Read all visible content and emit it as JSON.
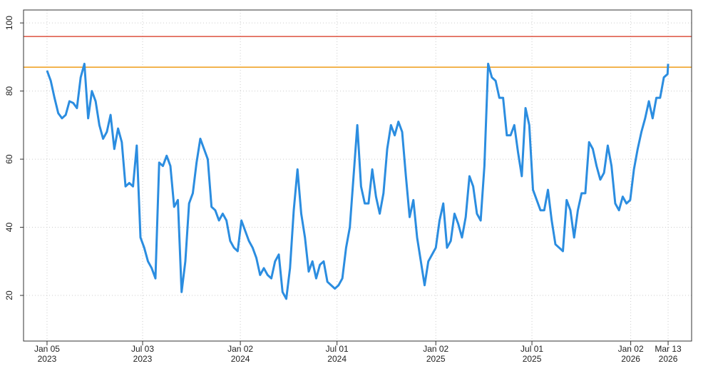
{
  "chart_data": {
    "type": "line",
    "x": [
      "2023-01-05",
      "2023-01-12",
      "2023-01-19",
      "2023-01-26",
      "2023-02-02",
      "2023-02-09",
      "2023-02-16",
      "2023-02-23",
      "2023-03-02",
      "2023-03-09",
      "2023-03-16",
      "2023-03-23",
      "2023-03-30",
      "2023-04-06",
      "2023-04-13",
      "2023-04-20",
      "2023-04-27",
      "2023-05-04",
      "2023-05-11",
      "2023-05-18",
      "2023-05-25",
      "2023-06-01",
      "2023-06-08",
      "2023-06-15",
      "2023-06-22",
      "2023-06-29",
      "2023-07-06",
      "2023-07-13",
      "2023-07-20",
      "2023-07-27",
      "2023-08-03",
      "2023-08-10",
      "2023-08-17",
      "2023-08-24",
      "2023-08-31",
      "2023-09-07",
      "2023-09-14",
      "2023-09-21",
      "2023-09-28",
      "2023-10-05",
      "2023-10-12",
      "2023-10-19",
      "2023-10-26",
      "2023-11-02",
      "2023-11-09",
      "2023-11-16",
      "2023-11-23",
      "2023-11-30",
      "2023-12-07",
      "2023-12-14",
      "2023-12-21",
      "2023-12-28",
      "2024-01-04",
      "2024-01-11",
      "2024-01-18",
      "2024-01-25",
      "2024-02-01",
      "2024-02-08",
      "2024-02-15",
      "2024-02-22",
      "2024-02-29",
      "2024-03-07",
      "2024-03-14",
      "2024-03-21",
      "2024-03-28",
      "2024-04-04",
      "2024-04-11",
      "2024-04-18",
      "2024-04-25",
      "2024-05-02",
      "2024-05-09",
      "2024-05-16",
      "2024-05-23",
      "2024-05-30",
      "2024-06-06",
      "2024-06-13",
      "2024-06-20",
      "2024-06-27",
      "2024-07-04",
      "2024-07-11",
      "2024-07-18",
      "2024-07-25",
      "2024-08-01",
      "2024-08-08",
      "2024-08-15",
      "2024-08-22",
      "2024-08-29",
      "2024-09-05",
      "2024-09-12",
      "2024-09-19",
      "2024-09-26",
      "2024-10-03",
      "2024-10-10",
      "2024-10-17",
      "2024-10-24",
      "2024-10-31",
      "2024-11-07",
      "2024-11-14",
      "2024-11-21",
      "2024-11-28",
      "2024-12-05",
      "2024-12-12",
      "2024-12-19",
      "2024-12-26",
      "2025-01-02",
      "2025-01-09",
      "2025-01-16",
      "2025-01-23",
      "2025-01-30",
      "2025-02-06",
      "2025-02-13",
      "2025-02-20",
      "2025-02-27",
      "2025-03-06",
      "2025-03-13",
      "2025-03-20",
      "2025-03-27",
      "2025-04-03",
      "2025-04-10",
      "2025-04-17",
      "2025-04-24",
      "2025-05-01",
      "2025-05-08",
      "2025-05-15",
      "2025-05-22",
      "2025-05-29",
      "2025-06-05",
      "2025-06-12",
      "2025-06-19",
      "2025-06-26",
      "2025-07-03",
      "2025-07-10",
      "2025-07-17",
      "2025-07-24",
      "2025-07-31",
      "2025-08-07",
      "2025-08-14",
      "2025-08-21",
      "2025-08-28",
      "2025-09-04",
      "2025-09-11",
      "2025-09-18",
      "2025-09-25",
      "2025-10-02",
      "2025-10-09",
      "2025-10-16",
      "2025-10-23",
      "2025-10-30",
      "2025-11-06",
      "2025-11-13",
      "2025-11-20",
      "2025-11-27",
      "2025-12-04",
      "2025-12-11",
      "2025-12-18",
      "2025-12-25",
      "2026-01-01",
      "2026-01-08",
      "2026-01-15",
      "2026-01-22",
      "2026-01-29",
      "2026-02-05",
      "2026-02-12",
      "2026-02-19",
      "2026-02-26",
      "2026-03-05",
      "2026-03-12",
      "2026-03-13"
    ],
    "series": [
      {
        "color": "#2b8de0",
        "values": [
          86,
          83,
          78,
          73.5,
          72,
          73,
          77,
          76.5,
          75,
          84,
          88,
          72,
          80,
          77,
          70,
          66,
          68,
          73,
          63,
          69,
          65,
          52,
          53,
          52,
          64,
          37,
          34,
          30,
          28,
          25,
          59,
          58,
          61,
          58,
          46,
          48,
          21,
          30,
          47,
          50,
          59,
          66,
          63,
          60,
          46,
          45,
          42,
          44,
          42,
          36,
          34,
          33,
          42,
          39,
          36,
          34,
          31,
          26,
          28,
          26,
          25,
          30,
          32,
          21,
          19,
          28,
          45,
          57,
          44,
          37,
          27,
          30,
          25,
          29,
          30,
          24,
          23,
          22,
          23,
          25,
          34,
          40,
          55,
          70,
          52,
          47,
          47,
          57,
          49,
          44,
          50,
          63,
          70,
          67,
          71,
          68,
          55,
          43,
          48,
          37,
          30,
          23,
          30,
          32,
          34,
          42,
          47,
          34,
          36,
          44,
          41,
          37,
          43,
          55,
          52,
          44,
          42,
          58,
          88,
          84,
          83,
          78,
          78,
          67,
          67,
          70,
          62,
          55,
          75,
          70,
          51,
          48,
          45,
          45,
          51,
          42,
          35,
          34,
          33,
          48,
          45,
          37,
          45,
          50,
          50,
          65,
          63,
          58,
          54,
          56,
          64,
          58,
          47,
          45,
          49,
          47,
          48,
          57,
          63,
          68,
          72,
          77,
          72,
          78,
          78,
          84,
          85,
          88
        ]
      }
    ],
    "hlines": [
      {
        "value": 96,
        "color": "#e0604f"
      },
      {
        "value": 87,
        "color": "#f0a42a"
      }
    ],
    "xlim": [
      "2022-11-22",
      "2026-04-26"
    ],
    "xticks": [
      {
        "value": "2023-01-05",
        "label": "Jan 05\n2023"
      },
      {
        "value": "2023-07-03",
        "label": "Jul 03\n2023"
      },
      {
        "value": "2024-01-02",
        "label": "Jan 02\n2024"
      },
      {
        "value": "2024-07-01",
        "label": "Jul 01\n2024"
      },
      {
        "value": "2025-01-02",
        "label": "Jan 02\n2025"
      },
      {
        "value": "2025-07-01",
        "label": "Jul 01\n2025"
      },
      {
        "value": "2026-01-02",
        "label": "Jan 02\n2026"
      },
      {
        "value": "2026-03-13",
        "label": "Mar 13\n2026"
      }
    ],
    "ylim": [
      6.6,
      103.8
    ],
    "yticks": [
      20,
      40,
      60,
      80,
      100
    ],
    "grid": true
  }
}
